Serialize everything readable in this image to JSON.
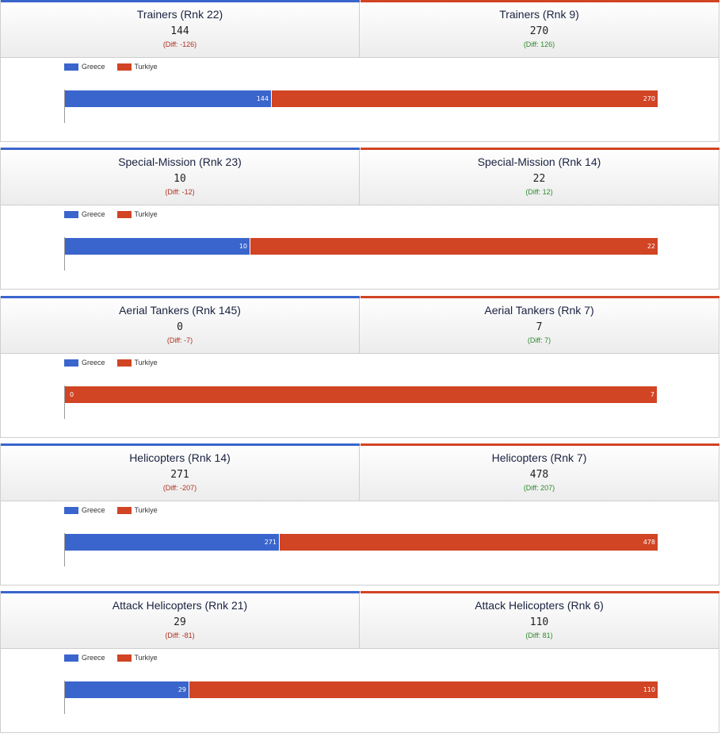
{
  "colors": {
    "greece": "#3a65cc",
    "turkiye": "#d14424"
  },
  "legend": [
    "Greece",
    "Turkiye"
  ],
  "panels": [
    {
      "left_title": "Trainers (Rnk 22)",
      "left_value": "144",
      "left_diff": "(Diff: -126)",
      "right_title": "Trainers (Rnk 9)",
      "right_value": "270",
      "right_diff": "(Diff: 126)"
    },
    {
      "left_title": "Special-Mission (Rnk 23)",
      "left_value": "10",
      "left_diff": "(Diff: -12)",
      "right_title": "Special-Mission (Rnk 14)",
      "right_value": "22",
      "right_diff": "(Diff: 12)"
    },
    {
      "left_title": "Aerial Tankers (Rnk 145)",
      "left_value": "0",
      "left_diff": "(Diff: -7)",
      "right_title": "Aerial Tankers (Rnk 7)",
      "right_value": "7",
      "right_diff": "(Diff: 7)"
    },
    {
      "left_title": "Helicopters (Rnk 14)",
      "left_value": "271",
      "left_diff": "(Diff: -207)",
      "right_title": "Helicopters (Rnk 7)",
      "right_value": "478",
      "right_diff": "(Diff: 207)"
    },
    {
      "left_title": "Attack Helicopters (Rnk 21)",
      "left_value": "29",
      "left_diff": "(Diff: -81)",
      "right_title": "Attack Helicopters (Rnk 6)",
      "right_value": "110",
      "right_diff": "(Diff: 81)"
    }
  ],
  "chart_data": [
    {
      "type": "bar",
      "stacked": true,
      "normalized": true,
      "series": [
        {
          "name": "Greece",
          "values": [
            144
          ]
        },
        {
          "name": "Turkiye",
          "values": [
            270
          ]
        }
      ]
    },
    {
      "type": "bar",
      "stacked": true,
      "normalized": true,
      "series": [
        {
          "name": "Greece",
          "values": [
            10
          ]
        },
        {
          "name": "Turkiye",
          "values": [
            22
          ]
        }
      ]
    },
    {
      "type": "bar",
      "stacked": true,
      "normalized": true,
      "series": [
        {
          "name": "Greece",
          "values": [
            0
          ]
        },
        {
          "name": "Turkiye",
          "values": [
            7
          ]
        }
      ]
    },
    {
      "type": "bar",
      "stacked": true,
      "normalized": true,
      "series": [
        {
          "name": "Greece",
          "values": [
            271
          ]
        },
        {
          "name": "Turkiye",
          "values": [
            478
          ]
        }
      ]
    },
    {
      "type": "bar",
      "stacked": true,
      "normalized": true,
      "series": [
        {
          "name": "Greece",
          "values": [
            29
          ]
        },
        {
          "name": "Turkiye",
          "values": [
            110
          ]
        }
      ]
    }
  ]
}
